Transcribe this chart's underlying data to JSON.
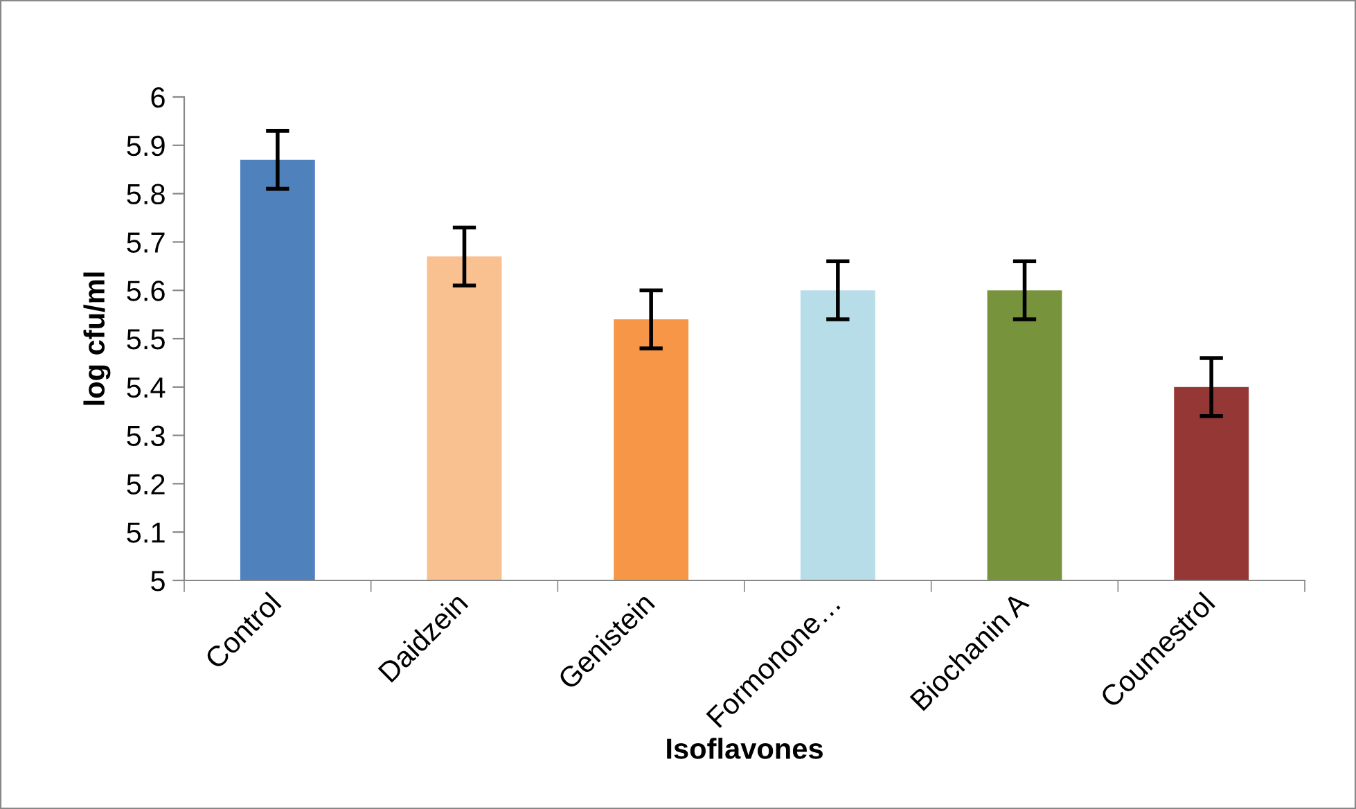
{
  "chart_data": {
    "type": "bar",
    "xlabel": "Isoflavones",
    "ylabel": "log cfu/ml",
    "categories": [
      "Control",
      "Daidzein",
      "Genistein",
      "Formonone…",
      "Biochanin A",
      "Coumestrol"
    ],
    "values": [
      5.87,
      5.67,
      5.54,
      5.6,
      5.6,
      5.4
    ],
    "errors": [
      0.06,
      0.06,
      0.06,
      0.06,
      0.06,
      0.06
    ],
    "colors": [
      "#4f81bd",
      "#f9c090",
      "#f79646",
      "#b7dde8",
      "#77933c",
      "#953735"
    ],
    "ylim": [
      5,
      6
    ],
    "yticks": [
      5,
      5.1,
      5.2,
      5.3,
      5.4,
      5.5,
      5.6,
      5.7,
      5.8,
      5.9,
      6
    ],
    "grid": false,
    "legend": false
  }
}
